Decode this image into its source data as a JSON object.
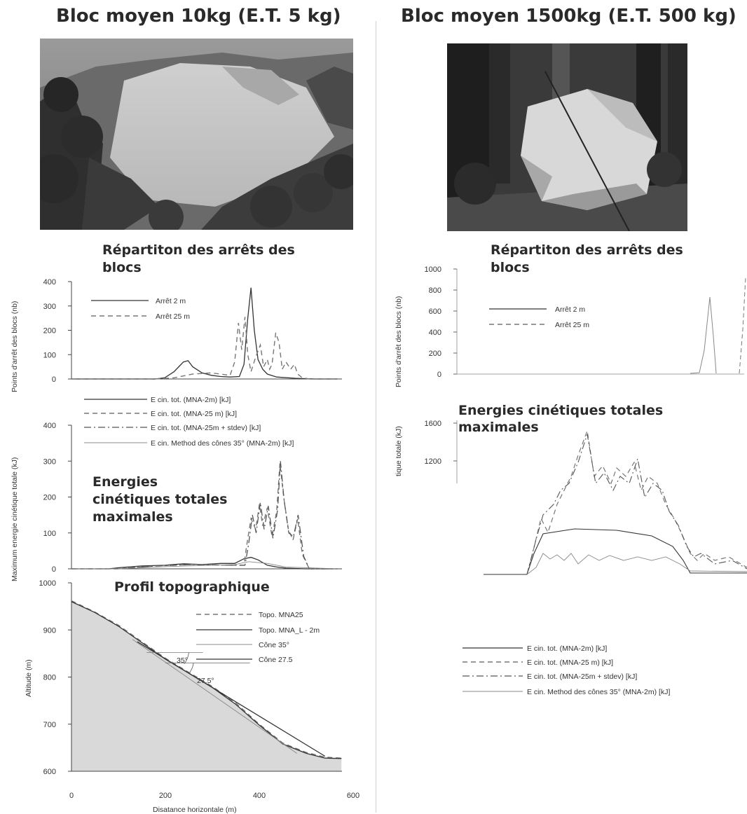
{
  "left": {
    "title": "Bloc moyen 10kg (E.T. 5 kg)",
    "photo": "scree-slope-photo"
  },
  "right": {
    "title": "Bloc moyen 1500kg (E.T. 500 kg)",
    "photo": "large-boulder-in-forest-photo"
  },
  "colors": {
    "solid": "#333333",
    "dashed": "#777777",
    "dashdot": "#555555",
    "cone": "#888888",
    "terrain": "#d9d9d9"
  },
  "chart_data": [
    {
      "id": "left-arrets",
      "type": "line",
      "title": "Répartiton des arrêts des blocs",
      "ylabel": "Points d'arrêt des blocs (nb)",
      "xlim": [
        0,
        580
      ],
      "ylim": [
        0,
        400
      ],
      "yticks": [
        0,
        100,
        200,
        300,
        400
      ],
      "series": [
        {
          "name": "Arrêt 2 m",
          "style": "solid",
          "x": [
            0,
            180,
            200,
            220,
            240,
            250,
            260,
            280,
            300,
            320,
            340,
            360,
            370,
            378,
            385,
            392,
            400,
            410,
            420,
            440,
            480,
            520,
            570
          ],
          "y": [
            0,
            0,
            5,
            30,
            70,
            75,
            50,
            25,
            15,
            10,
            8,
            10,
            60,
            250,
            375,
            200,
            80,
            40,
            20,
            8,
            3,
            0,
            0
          ]
        },
        {
          "name": "Arrêt 25 m",
          "style": "dashed",
          "x": [
            0,
            180,
            220,
            260,
            300,
            340,
            350,
            358,
            365,
            372,
            378,
            385,
            395,
            405,
            412,
            420,
            425,
            430,
            438,
            445,
            452,
            460,
            470,
            478,
            485,
            495,
            510,
            570
          ],
          "y": [
            0,
            0,
            5,
            20,
            25,
            15,
            70,
            230,
            120,
            255,
            100,
            30,
            90,
            140,
            50,
            80,
            40,
            60,
            190,
            150,
            40,
            70,
            40,
            60,
            20,
            5,
            0,
            0
          ]
        }
      ]
    },
    {
      "id": "left-energie",
      "type": "line",
      "title": "Energies cinétiques totales maximales",
      "ylabel": "Maximum energie cinétique totale (kJ)",
      "xlim": [
        0,
        580
      ],
      "ylim": [
        0,
        400
      ],
      "yticks": [
        0,
        100,
        200,
        300,
        400
      ],
      "series": [
        {
          "name": "E cin. tot. (MNA-2m) [kJ]",
          "style": "solid",
          "x": [
            0,
            80,
            100,
            150,
            200,
            240,
            280,
            320,
            350,
            370,
            385,
            400,
            420,
            440,
            460,
            500,
            570
          ],
          "y": [
            0,
            0,
            3,
            8,
            10,
            14,
            12,
            15,
            15,
            28,
            32,
            25,
            10,
            5,
            2,
            0,
            0
          ]
        },
        {
          "name": "E cin. tot. (MNA-25 m) [kJ]",
          "style": "dashed",
          "x": [
            0,
            100,
            180,
            260,
            340,
            370,
            375,
            385,
            395,
            403,
            410,
            420,
            430,
            440,
            447,
            455,
            465,
            475,
            485,
            495,
            510,
            570
          ],
          "y": [
            0,
            0,
            8,
            12,
            10,
            10,
            60,
            140,
            110,
            180,
            120,
            170,
            90,
            160,
            295,
            200,
            110,
            80,
            140,
            40,
            0,
            0
          ]
        },
        {
          "name": "E cin. tot. (MNA-25m + stdev) [kJ]",
          "style": "dashdot",
          "x": [
            0,
            100,
            180,
            260,
            340,
            372,
            380,
            388,
            396,
            405,
            413,
            422,
            432,
            442,
            448,
            456,
            466,
            476,
            486,
            498,
            510,
            570
          ],
          "y": [
            0,
            0,
            8,
            12,
            10,
            10,
            70,
            150,
            100,
            185,
            110,
            175,
            85,
            165,
            300,
            190,
            100,
            90,
            150,
            35,
            0,
            0
          ]
        },
        {
          "name": "E cin. Method des cônes 35°  (MNA-2m) [kJ]",
          "style": "cone",
          "x": [
            0,
            100,
            200,
            300,
            350,
            380,
            420,
            460,
            570
          ],
          "y": [
            0,
            0,
            6,
            10,
            12,
            20,
            15,
            5,
            0
          ]
        }
      ]
    },
    {
      "id": "left-profil",
      "type": "line",
      "title": "Profil topographique",
      "xlabel": "Disatance horizontale (m)",
      "ylabel": "Altitude (m)",
      "xlim": [
        0,
        600
      ],
      "ylim": [
        600,
        1000
      ],
      "xticks": [
        0,
        200,
        400,
        600
      ],
      "yticks": [
        600,
        700,
        800,
        900,
        1000
      ],
      "series": [
        {
          "name": "Topo. MNA25",
          "style": "dashed",
          "x": [
            0,
            50,
            100,
            150,
            200,
            250,
            300,
            350,
            400,
            450,
            500,
            540,
            575
          ],
          "y": [
            962,
            938,
            910,
            875,
            840,
            810,
            780,
            745,
            700,
            660,
            640,
            630,
            628
          ]
        },
        {
          "name": "Topo. MNA_L - 2m",
          "style": "solid",
          "x": [
            0,
            50,
            100,
            150,
            200,
            250,
            300,
            350,
            400,
            450,
            500,
            540,
            575
          ],
          "y": [
            960,
            937,
            908,
            873,
            838,
            808,
            778,
            742,
            698,
            658,
            638,
            628,
            627
          ]
        },
        {
          "name": "Cône 35°",
          "style": "cone",
          "x": [
            130,
            480
          ],
          "y": [
            880,
            638
          ]
        },
        {
          "name": "Cône 27.5",
          "style": "solid",
          "x": [
            140,
            540
          ],
          "y": [
            875,
            632
          ]
        }
      ],
      "annotations": [
        "35°",
        "27.5°"
      ]
    },
    {
      "id": "right-arrets",
      "type": "line",
      "title": "Répartiton des arrêts des blocs",
      "ylabel": "Points d'arrêt des blocs (nb)",
      "yticks": [
        0,
        200,
        400,
        600,
        800,
        1000
      ],
      "ylim": [
        0,
        1000
      ],
      "series": [
        {
          "name": "Arrêt 2 m",
          "style": "cone"
        },
        {
          "name": "Arrêt 25 m",
          "style": "dashed"
        }
      ]
    },
    {
      "id": "right-energie",
      "type": "line",
      "title": "Energies cinétiques totales maximales",
      "ylabel": "tique totale (kJ)",
      "yticks": [
        1200,
        1600
      ],
      "series": [
        {
          "name": "E cin. tot. (MNA-2m) [kJ]",
          "style": "solid"
        },
        {
          "name": "E cin. tot. (MNA-25 m) [kJ]",
          "style": "dashed"
        },
        {
          "name": "E cin. tot. (MNA-25m + stdev) [kJ]",
          "style": "dashdot"
        },
        {
          "name": "E cin. Method des cônes 35°  (MNA-2m) [kJ]",
          "style": "cone"
        }
      ]
    }
  ]
}
